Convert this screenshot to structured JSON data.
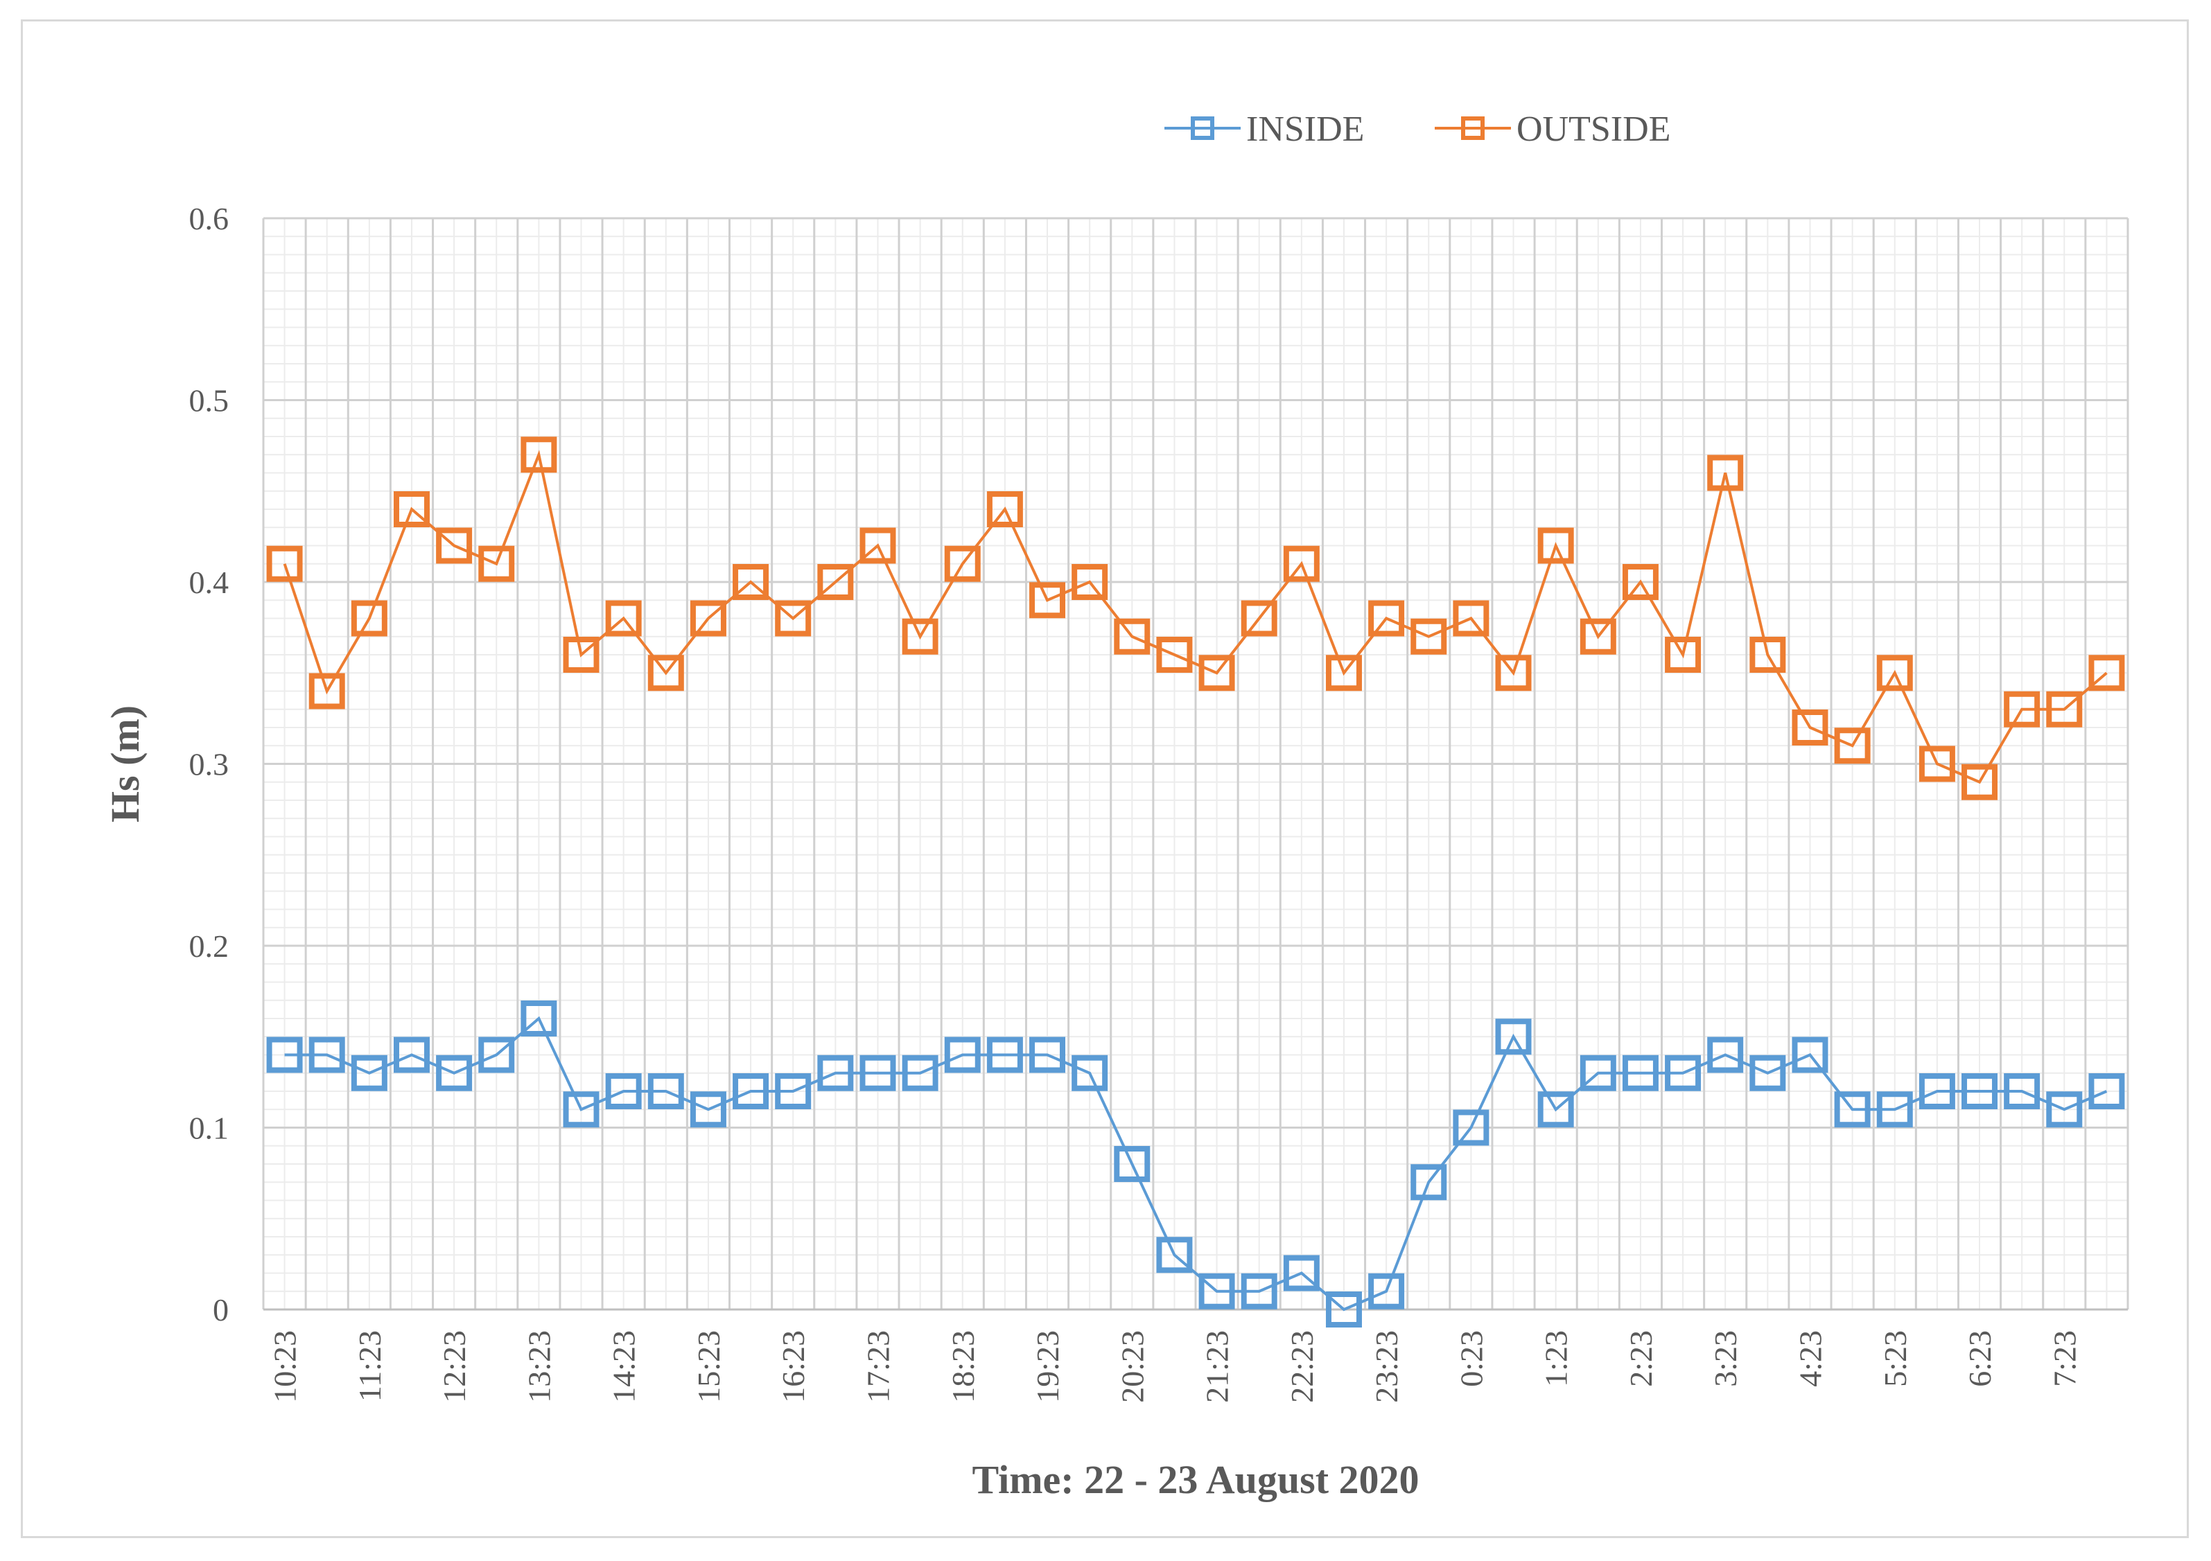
{
  "chart_data": {
    "type": "line",
    "title": "",
    "xlabel": "Time: 22 - 23 August 2020",
    "ylabel": "Hs (m)",
    "ylim": [
      0,
      0.6
    ],
    "yticks": [
      "0",
      "0.1",
      "0.2",
      "0.3",
      "0.4",
      "0.5",
      "0.6"
    ],
    "grid": true,
    "legend": "top-right",
    "categories": [
      "10:23",
      "",
      "11:23",
      "",
      "12:23",
      "",
      "13:23",
      "",
      "14:23",
      "",
      "15:23",
      "",
      "16:23",
      "",
      "17:23",
      "",
      "18:23",
      "",
      "19:23",
      "",
      "20:23",
      "",
      "21:23",
      "",
      "22:23",
      "",
      "23:23",
      "",
      "0:23",
      "",
      "1:23",
      "",
      "2:23",
      "",
      "3:23",
      "",
      "4:23",
      "",
      "5:23",
      "",
      "6:23",
      "",
      "7:23",
      ""
    ],
    "series": [
      {
        "name": "INSIDE",
        "color": "#5B9BD5",
        "values": [
          0.14,
          0.14,
          0.13,
          0.14,
          0.13,
          0.14,
          0.16,
          0.11,
          0.12,
          0.12,
          0.11,
          0.12,
          0.12,
          0.13,
          0.13,
          0.13,
          0.14,
          0.14,
          0.14,
          0.13,
          0.08,
          0.03,
          0.01,
          0.01,
          0.02,
          0.0,
          0.01,
          0.07,
          0.1,
          0.15,
          0.11,
          0.13,
          0.13,
          0.13,
          0.14,
          0.13,
          0.14,
          0.11,
          0.11,
          0.12,
          0.12,
          0.12,
          0.11,
          0.12
        ]
      },
      {
        "name": "OUTSIDE",
        "color": "#ED7D31",
        "values": [
          0.41,
          0.34,
          0.38,
          0.44,
          0.42,
          0.41,
          0.47,
          0.36,
          0.38,
          0.35,
          0.38,
          0.4,
          0.38,
          0.4,
          0.42,
          0.37,
          0.41,
          0.44,
          0.39,
          0.4,
          0.37,
          0.36,
          0.35,
          0.38,
          0.41,
          0.35,
          0.38,
          0.37,
          0.38,
          0.35,
          0.42,
          0.37,
          0.4,
          0.36,
          0.46,
          0.36,
          0.32,
          0.31,
          0.35,
          0.3,
          0.29,
          0.33,
          0.33,
          0.35
        ]
      }
    ]
  }
}
